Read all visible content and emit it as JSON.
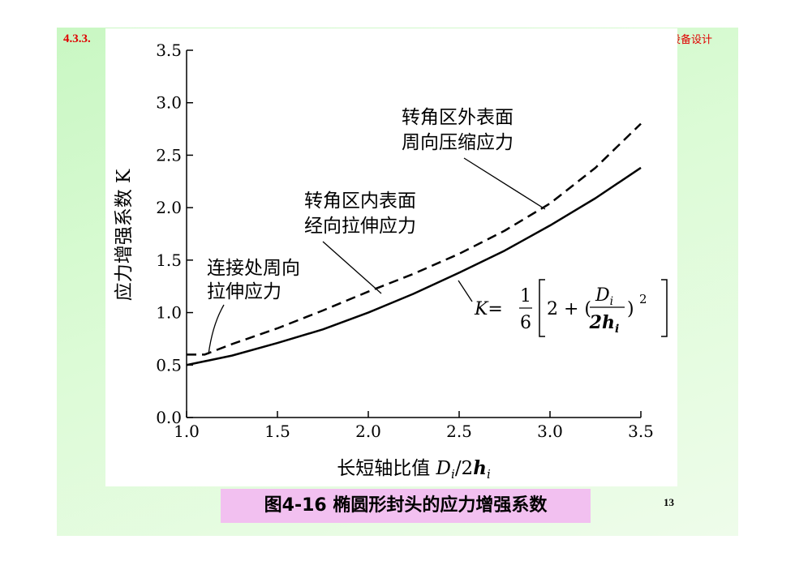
{
  "header": {
    "section": "4.3.3.",
    "corner": "设备设计"
  },
  "page_number": "13",
  "caption": "图4-16  椭圆形封头的应力增强系数",
  "chart_data": {
    "type": "line",
    "y_label": "应力增强系数 K",
    "x_label": {
      "text": "长短轴比值 ",
      "d": "D",
      "d_sub": "i",
      "slash": "/2",
      "h": "h",
      "h_sub": "i"
    },
    "xlim": [
      1.0,
      3.5
    ],
    "xticks": [
      {
        "value": 1,
        "label": "1.0"
      },
      1.5,
      {
        "value": 2,
        "label": "2.0"
      },
      2.5,
      {
        "value": 3,
        "label": "3.0"
      },
      3.5
    ],
    "ylim": [
      0,
      3.5
    ],
    "yticks": [
      {
        "value": 0,
        "label": "0.0"
      },
      0.5,
      {
        "value": 1,
        "label": "1.0"
      },
      1.5,
      {
        "value": 2,
        "label": "2.0"
      },
      2.5,
      {
        "value": 3,
        "label": "3.0"
      },
      3.5
    ],
    "series": [
      {
        "name": "solid",
        "color": "#000000",
        "dashed": false,
        "x": [
          1.0,
          1.25,
          1.5,
          1.75,
          2.0,
          2.25,
          2.5,
          2.75,
          3.0,
          3.25,
          3.5
        ],
        "values": [
          0.5,
          0.59,
          0.71,
          0.84,
          1.0,
          1.18,
          1.38,
          1.59,
          1.83,
          2.09,
          2.38
        ]
      },
      {
        "name": "dashed",
        "color": "#000000",
        "dashed": true,
        "x": [
          1.0,
          1.1,
          1.25,
          1.5,
          1.75,
          2.0,
          2.25,
          2.5,
          2.75,
          3.0,
          3.25,
          3.5
        ],
        "values": [
          0.6,
          0.6,
          0.7,
          0.85,
          1.02,
          1.2,
          1.37,
          1.56,
          1.78,
          2.04,
          2.38,
          2.8
        ]
      }
    ],
    "annotations": {
      "outer": [
        "转角区外表面",
        "周向压缩应力"
      ],
      "inner": [
        "转角区内表面",
        "经向拉伸应力"
      ],
      "joint": [
        "连接处周向",
        "拉伸应力"
      ],
      "formula": {
        "lhs": "K=",
        "num": "1",
        "den": "6",
        "left": "2 + (",
        "fnum": "D",
        "fnum_sub": "i",
        "fden": "2h",
        "fden_sub": "i",
        "right": ")",
        "exp": "2"
      }
    }
  }
}
